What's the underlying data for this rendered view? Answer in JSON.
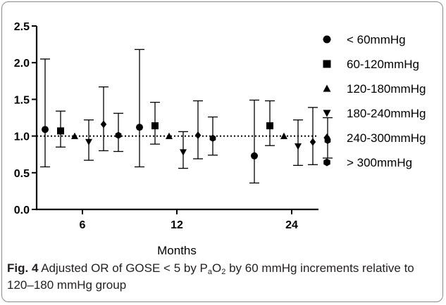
{
  "chart_data": {
    "type": "scatter",
    "xlabel": "Months",
    "ylabel": "",
    "ylim": [
      0,
      2.5
    ],
    "y_ticks": [
      "0.0",
      "0.5",
      "1.0",
      "1.5",
      "2.0",
      "2.5"
    ],
    "x_groups": [
      "6",
      "12",
      "24"
    ],
    "reference_line": 1.0,
    "grid": false,
    "legend_position": "right",
    "series": [
      {
        "name": "< 60mmHg",
        "marker": "circle",
        "points": [
          {
            "x": "6",
            "y": 1.09,
            "lower": 0.58,
            "upper": 2.05
          },
          {
            "x": "12",
            "y": 1.12,
            "lower": 0.58,
            "upper": 2.18
          },
          {
            "x": "24",
            "y": 0.73,
            "lower": 0.36,
            "upper": 1.49
          }
        ]
      },
      {
        "name": "60-120mmHg",
        "marker": "square",
        "points": [
          {
            "x": "6",
            "y": 1.07,
            "lower": 0.85,
            "upper": 1.34
          },
          {
            "x": "12",
            "y": 1.14,
            "lower": 0.89,
            "upper": 1.46
          },
          {
            "x": "24",
            "y": 1.14,
            "lower": 0.87,
            "upper": 1.48
          }
        ]
      },
      {
        "name": "120-180mmHg",
        "marker": "triangle-up",
        "points": [
          {
            "x": "6",
            "y": 1.0
          },
          {
            "x": "12",
            "y": 1.0
          },
          {
            "x": "24",
            "y": 1.0
          }
        ]
      },
      {
        "name": "180-240mmHg",
        "marker": "triangle-down",
        "points": [
          {
            "x": "6",
            "y": 0.92,
            "lower": 0.67,
            "upper": 1.22
          },
          {
            "x": "12",
            "y": 0.78,
            "lower": 0.56,
            "upper": 1.06
          },
          {
            "x": "24",
            "y": 0.86,
            "lower": 0.6,
            "upper": 1.22
          }
        ]
      },
      {
        "name": "240-300mmHg",
        "marker": "diamond",
        "points": [
          {
            "x": "6",
            "y": 1.16,
            "lower": 0.8,
            "upper": 1.67
          },
          {
            "x": "12",
            "y": 1.01,
            "lower": 0.69,
            "upper": 1.48
          },
          {
            "x": "24",
            "y": 0.92,
            "lower": 0.61,
            "upper": 1.39
          }
        ]
      },
      {
        "name": "> 300mmHg",
        "marker": "hexagon",
        "points": [
          {
            "x": "6",
            "y": 1.01,
            "lower": 0.79,
            "upper": 1.31
          },
          {
            "x": "12",
            "y": 0.97,
            "lower": 0.74,
            "upper": 1.26
          },
          {
            "x": "24",
            "y": 0.94,
            "lower": 0.7,
            "upper": 1.25
          }
        ]
      }
    ]
  },
  "caption": {
    "label": "Fig. 4",
    "text_1": " Adjusted OR of GOSE < 5 by P",
    "sub_1": "a",
    "text_2": "O",
    "sub_2": "2",
    "text_3": " by 60 mmHg increments relative to 120–180 mmHg group"
  },
  "colors": {
    "ink": "#000000",
    "caption_ink": "#231f20",
    "frame": "#8a8a8a"
  }
}
